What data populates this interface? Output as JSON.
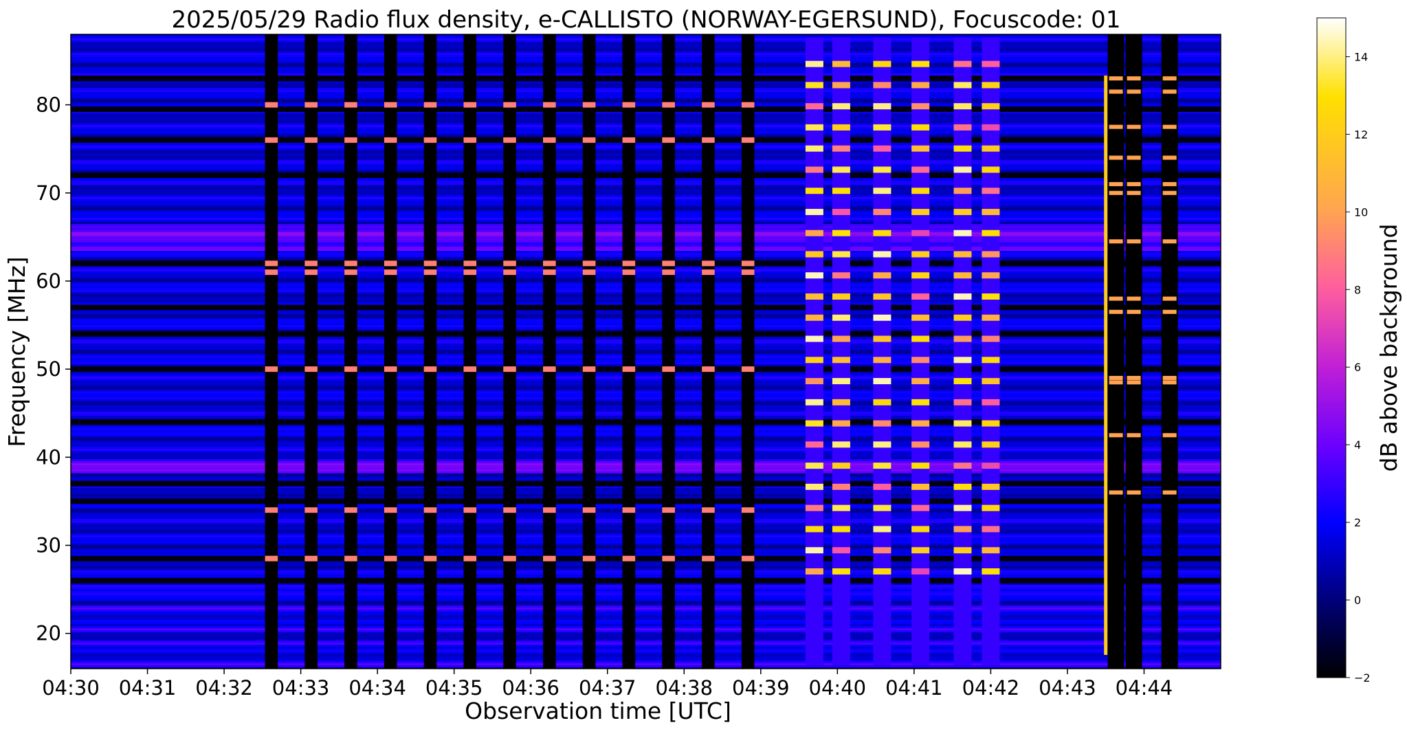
{
  "chart_data": {
    "type": "heatmap",
    "title": "2025/05/29  Radio flux density, e-CALLISTO (NORWAY-EGERSUND), Focuscode: 01",
    "xlabel": "Observation time [UTC]",
    "ylabel": "Frequency [MHz]",
    "xlim": [
      "04:30",
      "04:45"
    ],
    "ylim": [
      16,
      88
    ],
    "x_ticks": [
      "04:30",
      "04:31",
      "04:32",
      "04:33",
      "04:34",
      "04:35",
      "04:36",
      "04:37",
      "04:38",
      "04:39",
      "04:40",
      "04:41",
      "04:42",
      "04:43",
      "04:44"
    ],
    "y_ticks": [
      20,
      30,
      40,
      50,
      60,
      70,
      80
    ],
    "colorbar": {
      "label": "dB above background",
      "range": [
        -2,
        15
      ],
      "ticks": [
        -2,
        0,
        2,
        4,
        6,
        8,
        10,
        12,
        14
      ],
      "colormap": [
        "#000000",
        "#000066",
        "#0000ff",
        "#6a00ff",
        "#c01fd6",
        "#ff5e9e",
        "#ffa54f",
        "#ffe000",
        "#ffffff"
      ]
    },
    "features": {
      "background_dB": 1.5,
      "sweep_gaps": {
        "count": 13,
        "start_time": "04:32:32",
        "end_time": "04:38:45",
        "width_s": 10,
        "bright_bands_MHz": [
          80,
          76,
          62,
          61,
          50,
          34,
          28.5
        ],
        "bright_band_dB": 9
      },
      "interference_bursts": [
        {
          "time": "04:39:42",
          "peak_dB": 14.5
        },
        {
          "time": "04:40:03",
          "peak_dB": 14
        },
        {
          "time": "04:40:35",
          "peak_dB": 14.5
        },
        {
          "time": "04:41:05",
          "peak_dB": 13
        },
        {
          "time": "04:41:38",
          "peak_dB": 14.5
        },
        {
          "time": "04:42:00",
          "peak_dB": 13
        }
      ],
      "late_gaps": [
        "04:43:38",
        "04:43:52",
        "04:44:20"
      ],
      "vertical_spike": {
        "time": "04:43:30",
        "peak_dB": 12
      },
      "dark_channels_MHz": [
        83,
        79.5,
        76,
        72,
        62,
        57,
        54,
        50,
        44,
        37,
        35,
        28.5,
        26
      ]
    }
  }
}
